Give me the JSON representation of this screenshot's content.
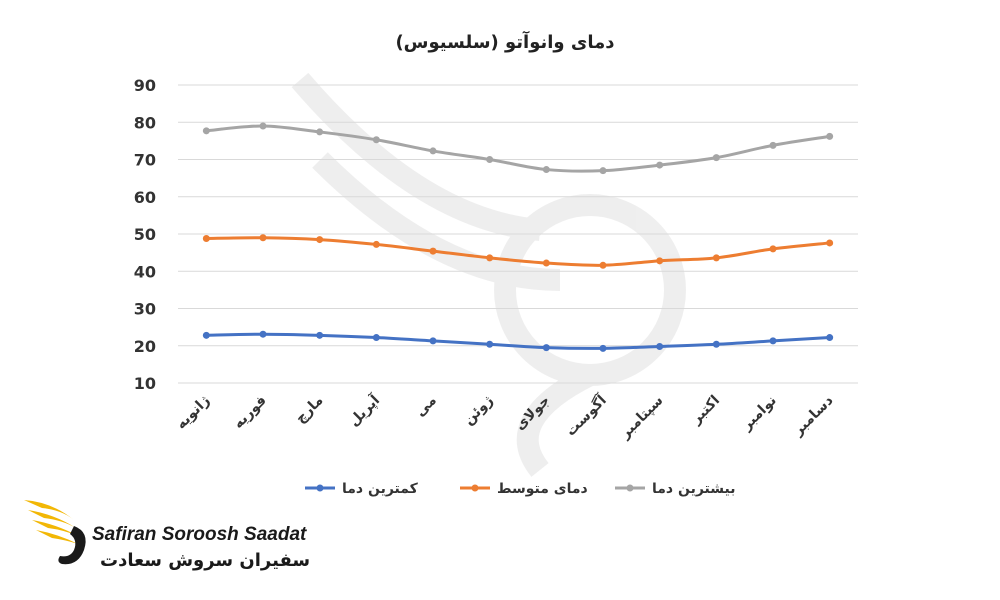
{
  "chart_data": {
    "type": "line",
    "title": "دمای وانوآتو (سلسیوس)",
    "categories": [
      "ژانویه",
      "فوریه",
      "مارچ",
      "آپریل",
      "می",
      "ژوئن",
      "جولای",
      "آگوست",
      "سپتامبر",
      "اکتبر",
      "نوامبر",
      "دسامبر"
    ],
    "y_ticks": [
      10,
      20,
      30,
      40,
      50,
      60,
      70,
      80,
      90
    ],
    "ylim": [
      10,
      90
    ],
    "grid": true,
    "legend_position": "bottom",
    "series": [
      {
        "name": "کمترین دما",
        "color": "#4472c4",
        "values": [
          22.8,
          23.1,
          22.8,
          22.2,
          21.3,
          20.4,
          19.5,
          19.3,
          19.8,
          20.4,
          21.3,
          22.2
        ]
      },
      {
        "name": "دمای متوسط",
        "color": "#ed7d31",
        "values": [
          48.8,
          49.0,
          48.5,
          47.2,
          45.4,
          43.6,
          42.2,
          41.6,
          42.8,
          43.6,
          46.0,
          47.6
        ]
      },
      {
        "name": "بیشترین دما",
        "color": "#a5a5a5",
        "values": [
          77.7,
          79.0,
          77.4,
          75.3,
          72.3,
          70.0,
          67.3,
          67.0,
          68.5,
          70.5,
          73.8,
          76.2
        ]
      }
    ]
  },
  "logo": {
    "text_en": "Safiran Soroosh Saadat",
    "text_fa": "سفیران سروش سعادت",
    "accent_color": "#f2b705"
  }
}
